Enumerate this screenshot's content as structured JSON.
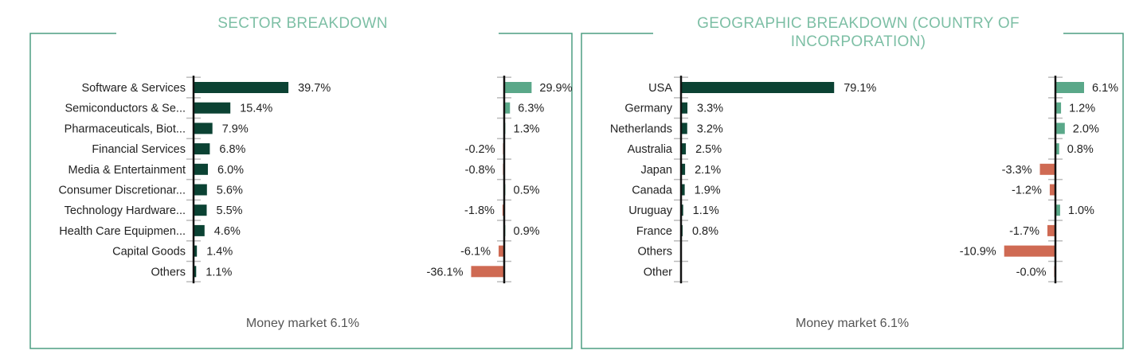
{
  "colors": {
    "border": "#4d9e82",
    "title": "#7dbfa5",
    "bar_dark": "#0b4233",
    "bar_positive": "#5aa889",
    "bar_negative": "#cf6a53",
    "axis": "#111111",
    "tick": "#bbbbbb"
  },
  "chart_data": [
    {
      "type": "bar",
      "orientation": "horizontal",
      "title": "SECTOR BREAKDOWN",
      "categories": [
        "Software & Services",
        "Semiconductors & Se...",
        "Pharmaceuticals, Biot...",
        "Financial Services",
        "Media & Entertainment",
        "Consumer Discretionar...",
        "Technology Hardware...",
        "Health Care Equipmen...",
        "Capital Goods",
        "Others"
      ],
      "series": [
        {
          "values": [
            39.7,
            15.4,
            7.9,
            6.8,
            6.0,
            5.6,
            5.5,
            4.6,
            1.4,
            1.1
          ],
          "labels": [
            "39.7%",
            "15.4%",
            "7.9%",
            "6.8%",
            "6.0%",
            "5.6%",
            "5.5%",
            "4.6%",
            "1.4%",
            "1.1%"
          ]
        },
        {
          "values": [
            29.9,
            6.3,
            1.3,
            -0.2,
            -0.8,
            0.5,
            -1.8,
            0.9,
            -6.1,
            -36.1
          ],
          "labels": [
            "29.9%",
            "6.3%",
            "1.3%",
            "-0.2%",
            "-0.8%",
            "0.5%",
            "-1.8%",
            "0.9%",
            "-6.1%",
            "-36.1%"
          ]
        }
      ],
      "footer": "Money market 6.1%"
    },
    {
      "type": "bar",
      "orientation": "horizontal",
      "title": "GEOGRAPHIC BREAKDOWN (COUNTRY OF INCORPORATION)",
      "categories": [
        "USA",
        "Germany",
        "Netherlands",
        "Australia",
        "Japan",
        "Canada",
        "Uruguay",
        "France",
        "Others",
        "Other"
      ],
      "series": [
        {
          "values": [
            79.1,
            3.3,
            3.2,
            2.5,
            2.1,
            1.9,
            1.1,
            0.8,
            null,
            null
          ],
          "labels": [
            "79.1%",
            "3.3%",
            "3.2%",
            "2.5%",
            "2.1%",
            "1.9%",
            "1.1%",
            "0.8%",
            "",
            ""
          ]
        },
        {
          "values": [
            6.1,
            1.2,
            2.0,
            0.8,
            -3.3,
            -1.2,
            1.0,
            -1.7,
            -10.9,
            -0.0
          ],
          "labels": [
            "6.1%",
            "1.2%",
            "2.0%",
            "0.8%",
            "-3.3%",
            "-1.2%",
            "1.0%",
            "-1.7%",
            "-10.9%",
            "-0.0%"
          ]
        }
      ],
      "footer": "Money market 6.1%"
    }
  ]
}
